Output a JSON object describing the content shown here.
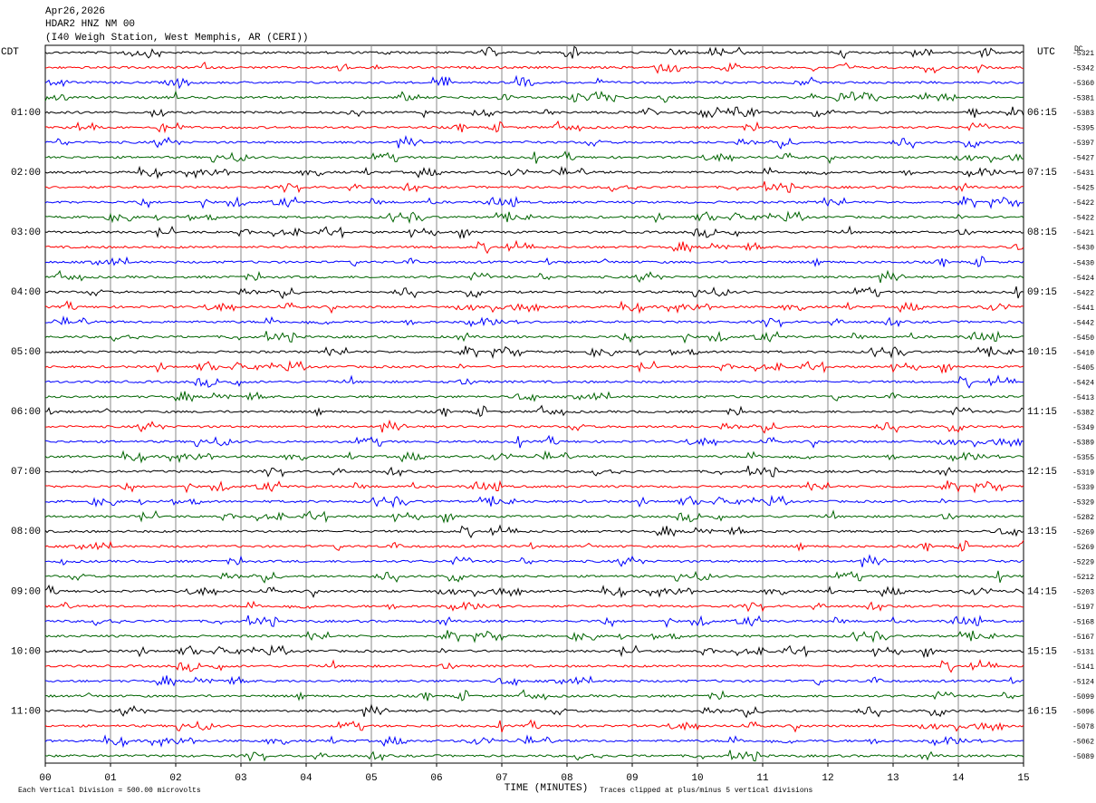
{
  "header": {
    "date": "Apr26,2026",
    "station": "HDAR2 HNZ NM 00",
    "location": "(I40 Weigh Station, West Memphis, AR (CERI))"
  },
  "left_zone": "CDT",
  "right_zone": "UTC",
  "dc_label": "DC",
  "left_labels": [
    "01:00",
    "02:00",
    "03:00",
    "04:00",
    "05:00",
    "06:00",
    "07:00",
    "08:00",
    "09:00",
    "10:00",
    "11:00"
  ],
  "right_labels": [
    "06:15",
    "07:15",
    "08:15",
    "09:15",
    "10:15",
    "11:15",
    "12:15",
    "13:15",
    "14:15",
    "15:15",
    "16:15"
  ],
  "trace_colors": [
    "#000000",
    "#ff0000",
    "#0000ff",
    "#006400"
  ],
  "dc_values": [
    "-5321",
    "-5342",
    "-5360",
    "-5381",
    "-5383",
    "-5395",
    "-5397",
    "-5427",
    "-5431",
    "-5425",
    "-5422",
    "-5422",
    "-5421",
    "-5430",
    "-5430",
    "-5424",
    "-5422",
    "-5441",
    "-5442",
    "-5450",
    "-5410",
    "-5405",
    "-5424",
    "-5413",
    "-5382",
    "-5349",
    "-5389",
    "-5355",
    "-5319",
    "-5339",
    "-5329",
    "-5282",
    "-5269",
    "-5269",
    "-5229",
    "-5212",
    "-5203",
    "-5197",
    "-5168",
    "-5167",
    "-5131",
    "-5141",
    "-5124",
    "-5099",
    "-5096",
    "-5078",
    "-5062",
    "-5089"
  ],
  "x_ticks": [
    "00",
    "01",
    "02",
    "03",
    "04",
    "05",
    "06",
    "07",
    "08",
    "09",
    "10",
    "11",
    "12",
    "13",
    "14",
    "15"
  ],
  "x_label": "TIME (MINUTES)",
  "footer": {
    "scale": "Each Vertical Division =  500.00 microvolts",
    "clip": "Traces clipped at plus/minus 5 vertical divisions"
  }
}
